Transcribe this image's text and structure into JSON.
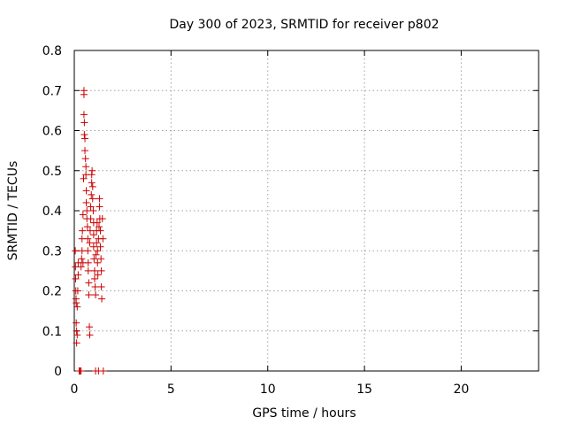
{
  "chart_data": {
    "type": "scatter",
    "title": "Day 300 of 2023, SRMTID for receiver p802",
    "xlabel": "GPS time / hours",
    "ylabel": "SRMTID / TECUs",
    "xlim": [
      0,
      24
    ],
    "ylim": [
      0,
      0.8
    ],
    "x_ticks": [
      0,
      5,
      10,
      15,
      20
    ],
    "y_ticks": [
      0,
      0.1,
      0.2,
      0.3,
      0.4,
      0.5,
      0.6,
      0.7,
      0.8
    ],
    "y_tick_labels": [
      "0",
      "0.1",
      "0.2",
      "0.3",
      "0.4",
      "0.5",
      "0.6",
      "0.7",
      "0.8"
    ],
    "grid": true,
    "marker": "plus",
    "color": "#cc0000",
    "series": [
      {
        "points": [
          [
            0.05,
            0.3
          ],
          [
            0.06,
            0.26
          ],
          [
            0.07,
            0.23
          ],
          [
            0.08,
            0.2
          ],
          [
            0.09,
            0.18
          ],
          [
            0.1,
            0.17
          ],
          [
            0.1,
            0.12
          ],
          [
            0.12,
            0.1
          ],
          [
            0.12,
            0.07
          ],
          [
            0.15,
            0.09
          ],
          [
            0.15,
            0.16
          ],
          [
            0.18,
            0.2
          ],
          [
            0.2,
            0.24
          ],
          [
            0.2,
            0.27
          ],
          [
            0.25,
            0.0
          ],
          [
            0.3,
            0.0
          ],
          [
            0.35,
            0.0
          ],
          [
            0.35,
            0.26
          ],
          [
            0.38,
            0.28
          ],
          [
            0.4,
            0.3
          ],
          [
            0.4,
            0.33
          ],
          [
            0.42,
            0.35
          ],
          [
            0.45,
            0.27
          ],
          [
            0.45,
            0.39
          ],
          [
            0.48,
            0.48
          ],
          [
            0.5,
            0.7
          ],
          [
            0.5,
            0.69
          ],
          [
            0.5,
            0.64
          ],
          [
            0.52,
            0.62
          ],
          [
            0.52,
            0.59
          ],
          [
            0.55,
            0.58
          ],
          [
            0.55,
            0.55
          ],
          [
            0.58,
            0.53
          ],
          [
            0.6,
            0.51
          ],
          [
            0.6,
            0.49
          ],
          [
            0.62,
            0.45
          ],
          [
            0.62,
            0.42
          ],
          [
            0.65,
            0.4
          ],
          [
            0.65,
            0.38
          ],
          [
            0.68,
            0.36
          ],
          [
            0.7,
            0.33
          ],
          [
            0.7,
            0.3
          ],
          [
            0.72,
            0.27
          ],
          [
            0.72,
            0.25
          ],
          [
            0.75,
            0.22
          ],
          [
            0.75,
            0.19
          ],
          [
            0.78,
            0.11
          ],
          [
            0.8,
            0.09
          ],
          [
            0.8,
            0.32
          ],
          [
            0.82,
            0.35
          ],
          [
            0.85,
            0.38
          ],
          [
            0.85,
            0.41
          ],
          [
            0.88,
            0.44
          ],
          [
            0.9,
            0.47
          ],
          [
            0.9,
            0.49
          ],
          [
            0.92,
            0.5
          ],
          [
            0.95,
            0.46
          ],
          [
            0.95,
            0.43
          ],
          [
            0.98,
            0.4
          ],
          [
            1.0,
            0.37
          ],
          [
            1.0,
            0.34
          ],
          [
            1.0,
            0.31
          ],
          [
            1.02,
            0.28
          ],
          [
            1.05,
            0.25
          ],
          [
            1.05,
            0.23
          ],
          [
            1.08,
            0.21
          ],
          [
            1.1,
            0.19
          ],
          [
            1.1,
            0.0
          ],
          [
            1.12,
            0.29
          ],
          [
            1.15,
            0.32
          ],
          [
            1.15,
            0.35
          ],
          [
            1.18,
            0.37
          ],
          [
            1.2,
            0.3
          ],
          [
            1.2,
            0.27
          ],
          [
            1.22,
            0.24
          ],
          [
            1.25,
            0.0
          ],
          [
            1.25,
            0.33
          ],
          [
            1.28,
            0.36
          ],
          [
            1.3,
            0.43
          ],
          [
            1.3,
            0.41
          ],
          [
            1.32,
            0.38
          ],
          [
            1.35,
            0.35
          ],
          [
            1.35,
            0.31
          ],
          [
            1.38,
            0.28
          ],
          [
            1.4,
            0.25
          ],
          [
            1.4,
            0.21
          ],
          [
            1.42,
            0.18
          ],
          [
            1.45,
            0.38
          ],
          [
            1.48,
            0.33
          ],
          [
            1.5,
            0.0
          ]
        ]
      }
    ]
  }
}
